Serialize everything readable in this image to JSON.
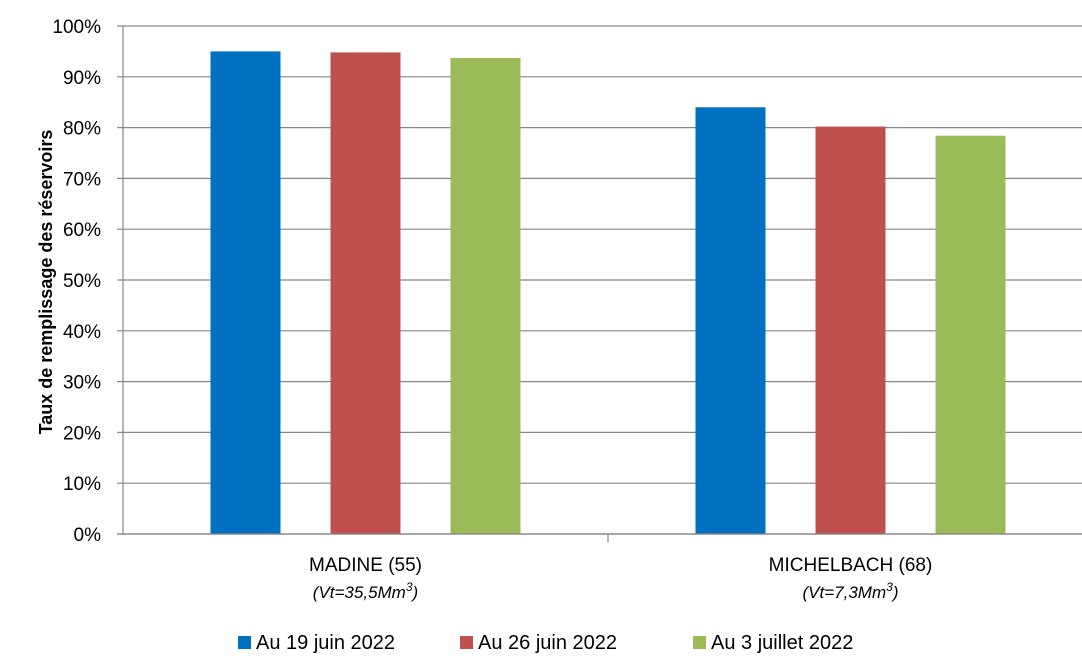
{
  "chart_data": {
    "type": "bar",
    "categories": [
      {
        "label": "MADINE (55)",
        "sub_prefix": "(Vt=35,5Mm",
        "sub_sup": "3",
        "sub_suffix": ")"
      },
      {
        "label": "MICHELBACH (68)",
        "sub_prefix": "(Vt=7,3Mm",
        "sub_sup": "3",
        "sub_suffix": ")"
      }
    ],
    "series": [
      {
        "name": "Au 19 juin 2022",
        "color": "#0070C0",
        "values": [
          95,
          84
        ]
      },
      {
        "name": "Au 26 juin 2022",
        "color": "#C0504D",
        "values": [
          94.8,
          80.2
        ]
      },
      {
        "name": "Au 3 juillet 2022",
        "color": "#9BBB59",
        "values": [
          93.7,
          78.4
        ]
      }
    ],
    "ylabel": "Taux de remplissage des réservoirs",
    "ylim": [
      0,
      100
    ],
    "yticks": [
      "0%",
      "10%",
      "20%",
      "30%",
      "40%",
      "50%",
      "60%",
      "70%",
      "80%",
      "90%",
      "100%"
    ],
    "grid": true,
    "legend_position": "bottom"
  }
}
